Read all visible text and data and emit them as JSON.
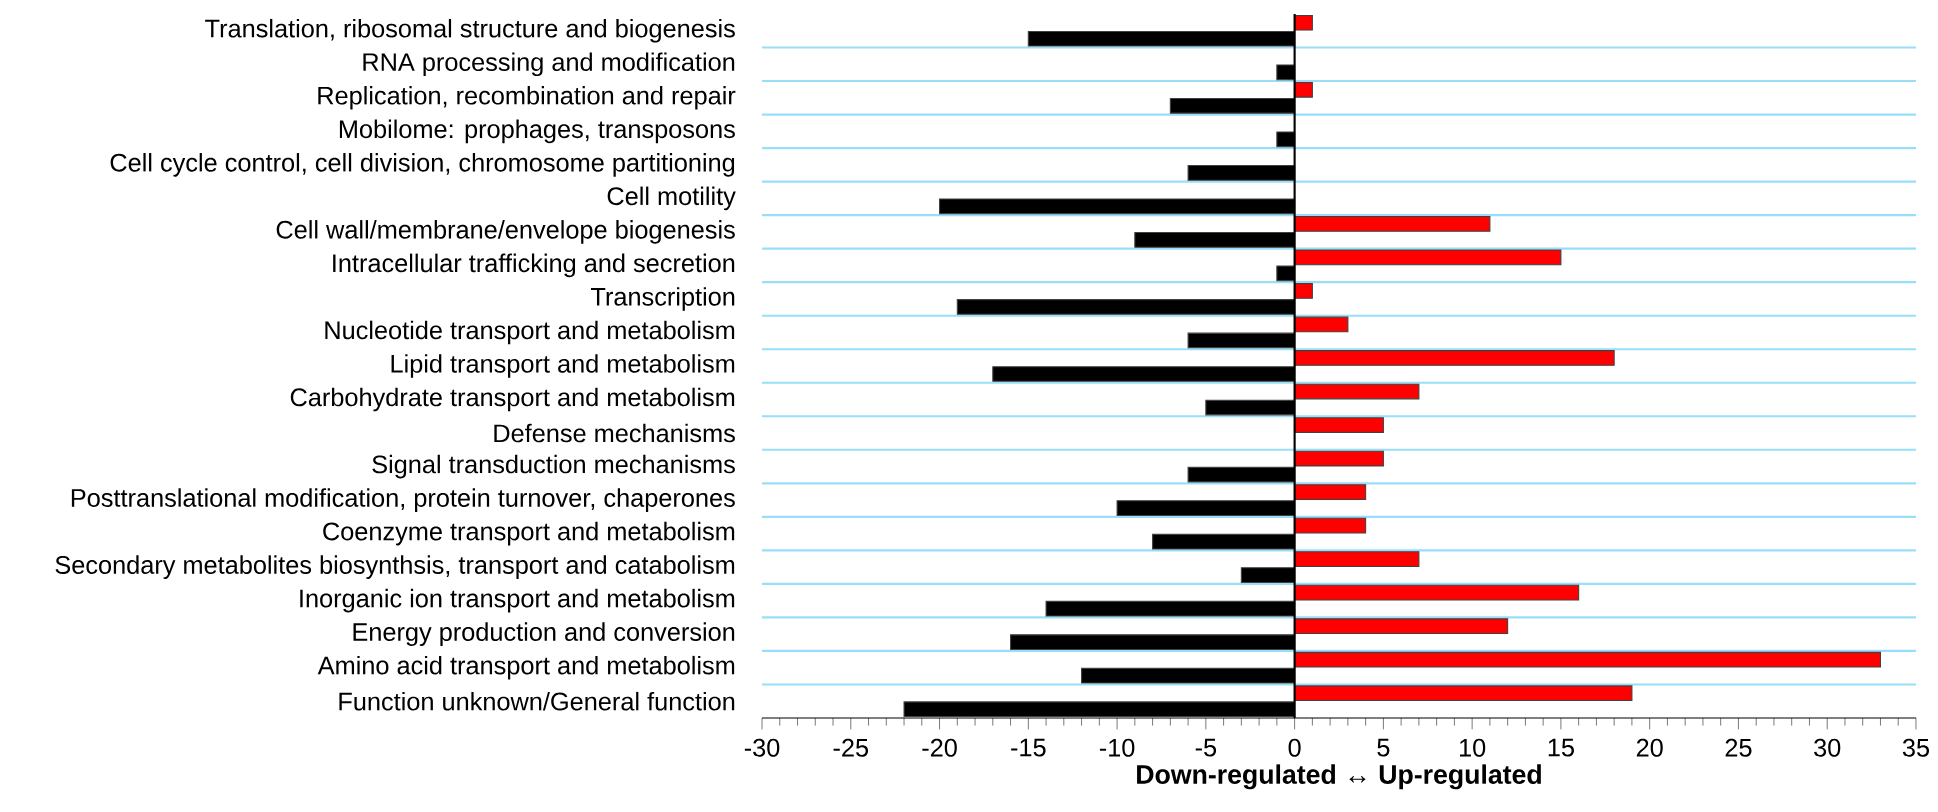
{
  "chart_data": {
    "type": "bar",
    "orientation": "horizontal",
    "xlabel": "**Down-regulated  ↔  Up-regulated**",
    "categories": [
      "Translation, ribosomal structure and biogenesis",
      "RNA processing and modification",
      "Replication, recombination and repair",
      "Mobilome: prophages, transposons",
      "Cell cycle control, cell division, chromosome partitioning",
      "Cell motility",
      "Cell wall/membrane/envelope biogenesis",
      "Intracellular trafficking and secretion",
      "Transcription",
      "Nucleotide transport and metabolism",
      "Lipid transport and metabolism",
      "Carbohydrate transport and metabolism",
      "Defense mechanisms",
      "Signal transduction mechanisms",
      "Posttranslational modification, protein turnover, chaperones",
      "Coenzyme transport and metabolism",
      "Secondary metabolites biosynthsis, transport and catabolism",
      "Inorganic ion transport and metabolism",
      "Energy production and conversion",
      "Amino acid transport and metabolism",
      "Function unknown/General function"
    ],
    "series": [
      {
        "color": "#ff0000",
        "values": [
          1,
          null,
          1,
          null,
          null,
          null,
          11,
          15,
          1,
          3,
          18,
          7,
          5,
          5,
          4,
          4,
          7,
          16,
          12,
          33,
          19
        ]
      },
      {
        "color": "#000000",
        "values": [
          -15,
          -1,
          -7,
          -1,
          -6,
          -20,
          -9,
          -1,
          -19,
          -6,
          -17,
          -5,
          null,
          -6,
          -10,
          -8,
          -3,
          -14,
          -16,
          -12,
          -22
        ]
      }
    ],
    "xlim": [
      -30,
      35
    ],
    "xticks": [
      -30,
      -25,
      -20,
      -15,
      -10,
      -5,
      0,
      5,
      10,
      15,
      20,
      25,
      30,
      35
    ],
    "grid": "y"
  }
}
